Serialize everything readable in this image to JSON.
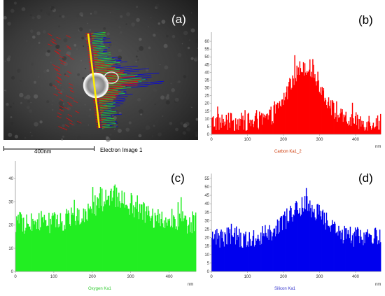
{
  "colors": {
    "carbon": "#ff0000",
    "oxygen": "#22ee22",
    "silicon": "#0000ee",
    "scan_line": "#ffee00",
    "axis": "#999999"
  },
  "panel_a": {
    "label": "(a)",
    "scale_text": "400nm",
    "caption": "Electron Image 1"
  },
  "chart_data": [
    {
      "id": "carbon",
      "type": "bar",
      "panel_label": "(b)",
      "series_name": "Carbon Ka1_2",
      "x_unit": "nm",
      "xlim": [
        0,
        470
      ],
      "ylim": [
        0,
        65
      ],
      "xticks": [
        0,
        100,
        200,
        300,
        400
      ],
      "yticks": [
        0,
        5,
        10,
        15,
        20,
        25,
        30,
        35,
        40,
        45,
        50,
        55,
        60
      ],
      "profile": {
        "baseline": 8,
        "peak": 36,
        "center": 260,
        "width": 45,
        "noise": 6
      },
      "n_points": 235
    },
    {
      "id": "oxygen",
      "type": "bar",
      "panel_label": "(c)",
      "series_name": "Oxygen Ka1",
      "x_unit": "nm",
      "xlim": [
        0,
        470
      ],
      "ylim": [
        0,
        47
      ],
      "xticks": [
        0,
        100,
        200,
        300,
        400
      ],
      "yticks": [
        0,
        10,
        20,
        30,
        40
      ],
      "profile": {
        "baseline": 21,
        "peak": 11,
        "center": 255,
        "width": 55,
        "noise": 5
      },
      "n_points": 235
    },
    {
      "id": "silicon",
      "type": "bar",
      "panel_label": "(d)",
      "series_name": "Silicon Ka1",
      "x_unit": "nm",
      "xlim": [
        0,
        470
      ],
      "ylim": [
        0,
        57
      ],
      "xticks": [
        0,
        100,
        200,
        300,
        400
      ],
      "yticks": [
        0,
        5,
        10,
        15,
        20,
        25,
        30,
        35,
        40,
        45,
        50,
        55
      ],
      "profile": {
        "baseline": 20,
        "peak": 19,
        "center": 260,
        "width": 50,
        "noise": 6
      },
      "n_points": 235
    }
  ]
}
